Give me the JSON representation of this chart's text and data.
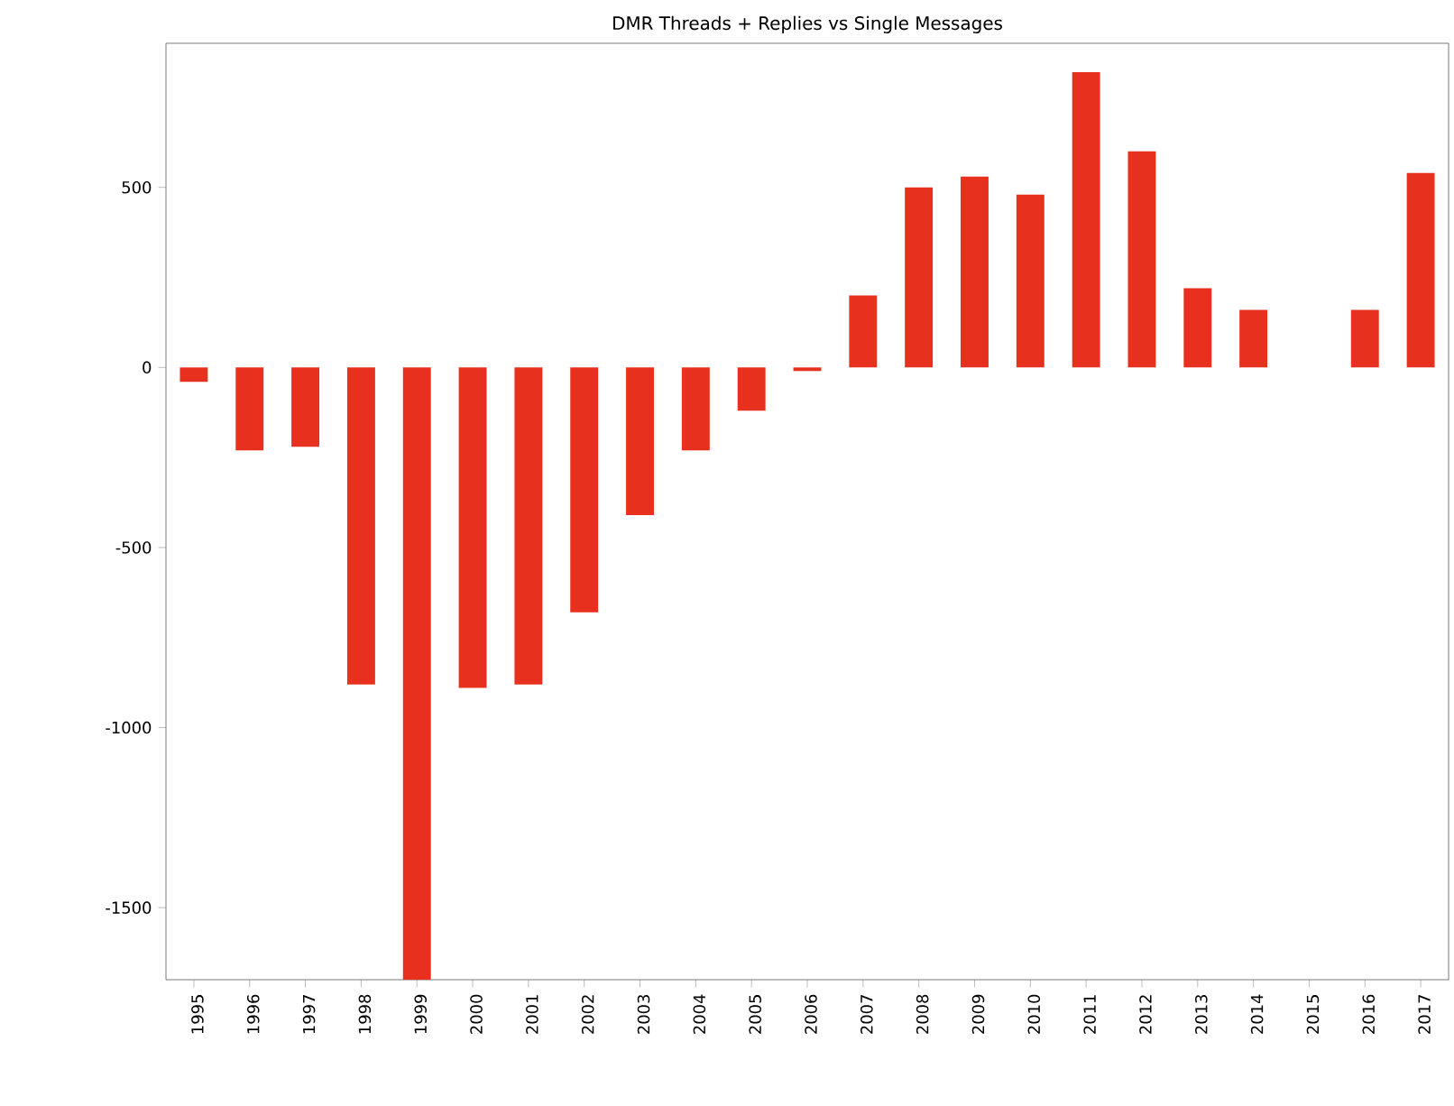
{
  "chart_data": {
    "type": "bar",
    "title": "DMR Threads + Replies vs Single Messages",
    "categories": [
      "1995",
      "1996",
      "1997",
      "1998",
      "1999",
      "2000",
      "2001",
      "2002",
      "2003",
      "2004",
      "2005",
      "2006",
      "2007",
      "2008",
      "2009",
      "2010",
      "2011",
      "2012",
      "2013",
      "2014",
      "2015",
      "2016",
      "2017"
    ],
    "values": [
      -40,
      -230,
      -220,
      -880,
      -1700,
      -890,
      -880,
      -680,
      -410,
      -230,
      -120,
      -10,
      200,
      500,
      530,
      480,
      820,
      600,
      220,
      160,
      0,
      160,
      540
    ],
    "color": "#e8301f",
    "ylim": [
      -1700,
      900
    ],
    "yticks": [
      -1500,
      -1000,
      -500,
      0,
      500
    ]
  }
}
